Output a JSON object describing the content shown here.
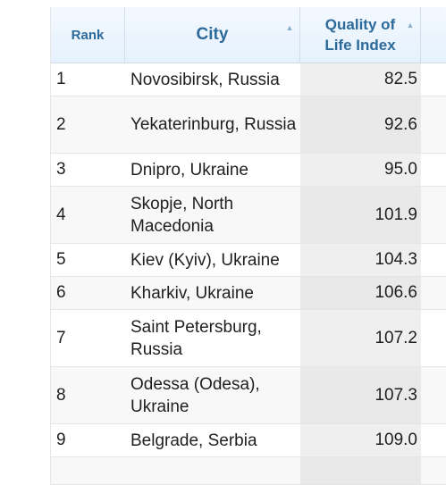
{
  "table": {
    "headers": {
      "rank": "Rank",
      "city": "City",
      "qli_line1": "Quality of",
      "qli_line2": "Life Index"
    },
    "rows": [
      {
        "rank": "1",
        "city": "Novosibirsk, Russia",
        "value": "82.5"
      },
      {
        "rank": "2",
        "city": "Yekaterinburg, Russia",
        "value": "92.6"
      },
      {
        "rank": "3",
        "city": "Dnipro, Ukraine",
        "value": "95.0"
      },
      {
        "rank": "4",
        "city": "Skopje, North Macedonia",
        "value": "101.9"
      },
      {
        "rank": "5",
        "city": "Kiev (Kyiv), Ukraine",
        "value": "104.3"
      },
      {
        "rank": "6",
        "city": "Kharkiv, Ukraine",
        "value": "106.6"
      },
      {
        "rank": "7",
        "city": "Saint Petersburg, Russia",
        "value": "107.2"
      },
      {
        "rank": "8",
        "city": "Odessa (Odesa), Ukraine",
        "value": "107.3"
      },
      {
        "rank": "9",
        "city": "Belgrade, Serbia",
        "value": "109.0"
      }
    ]
  }
}
